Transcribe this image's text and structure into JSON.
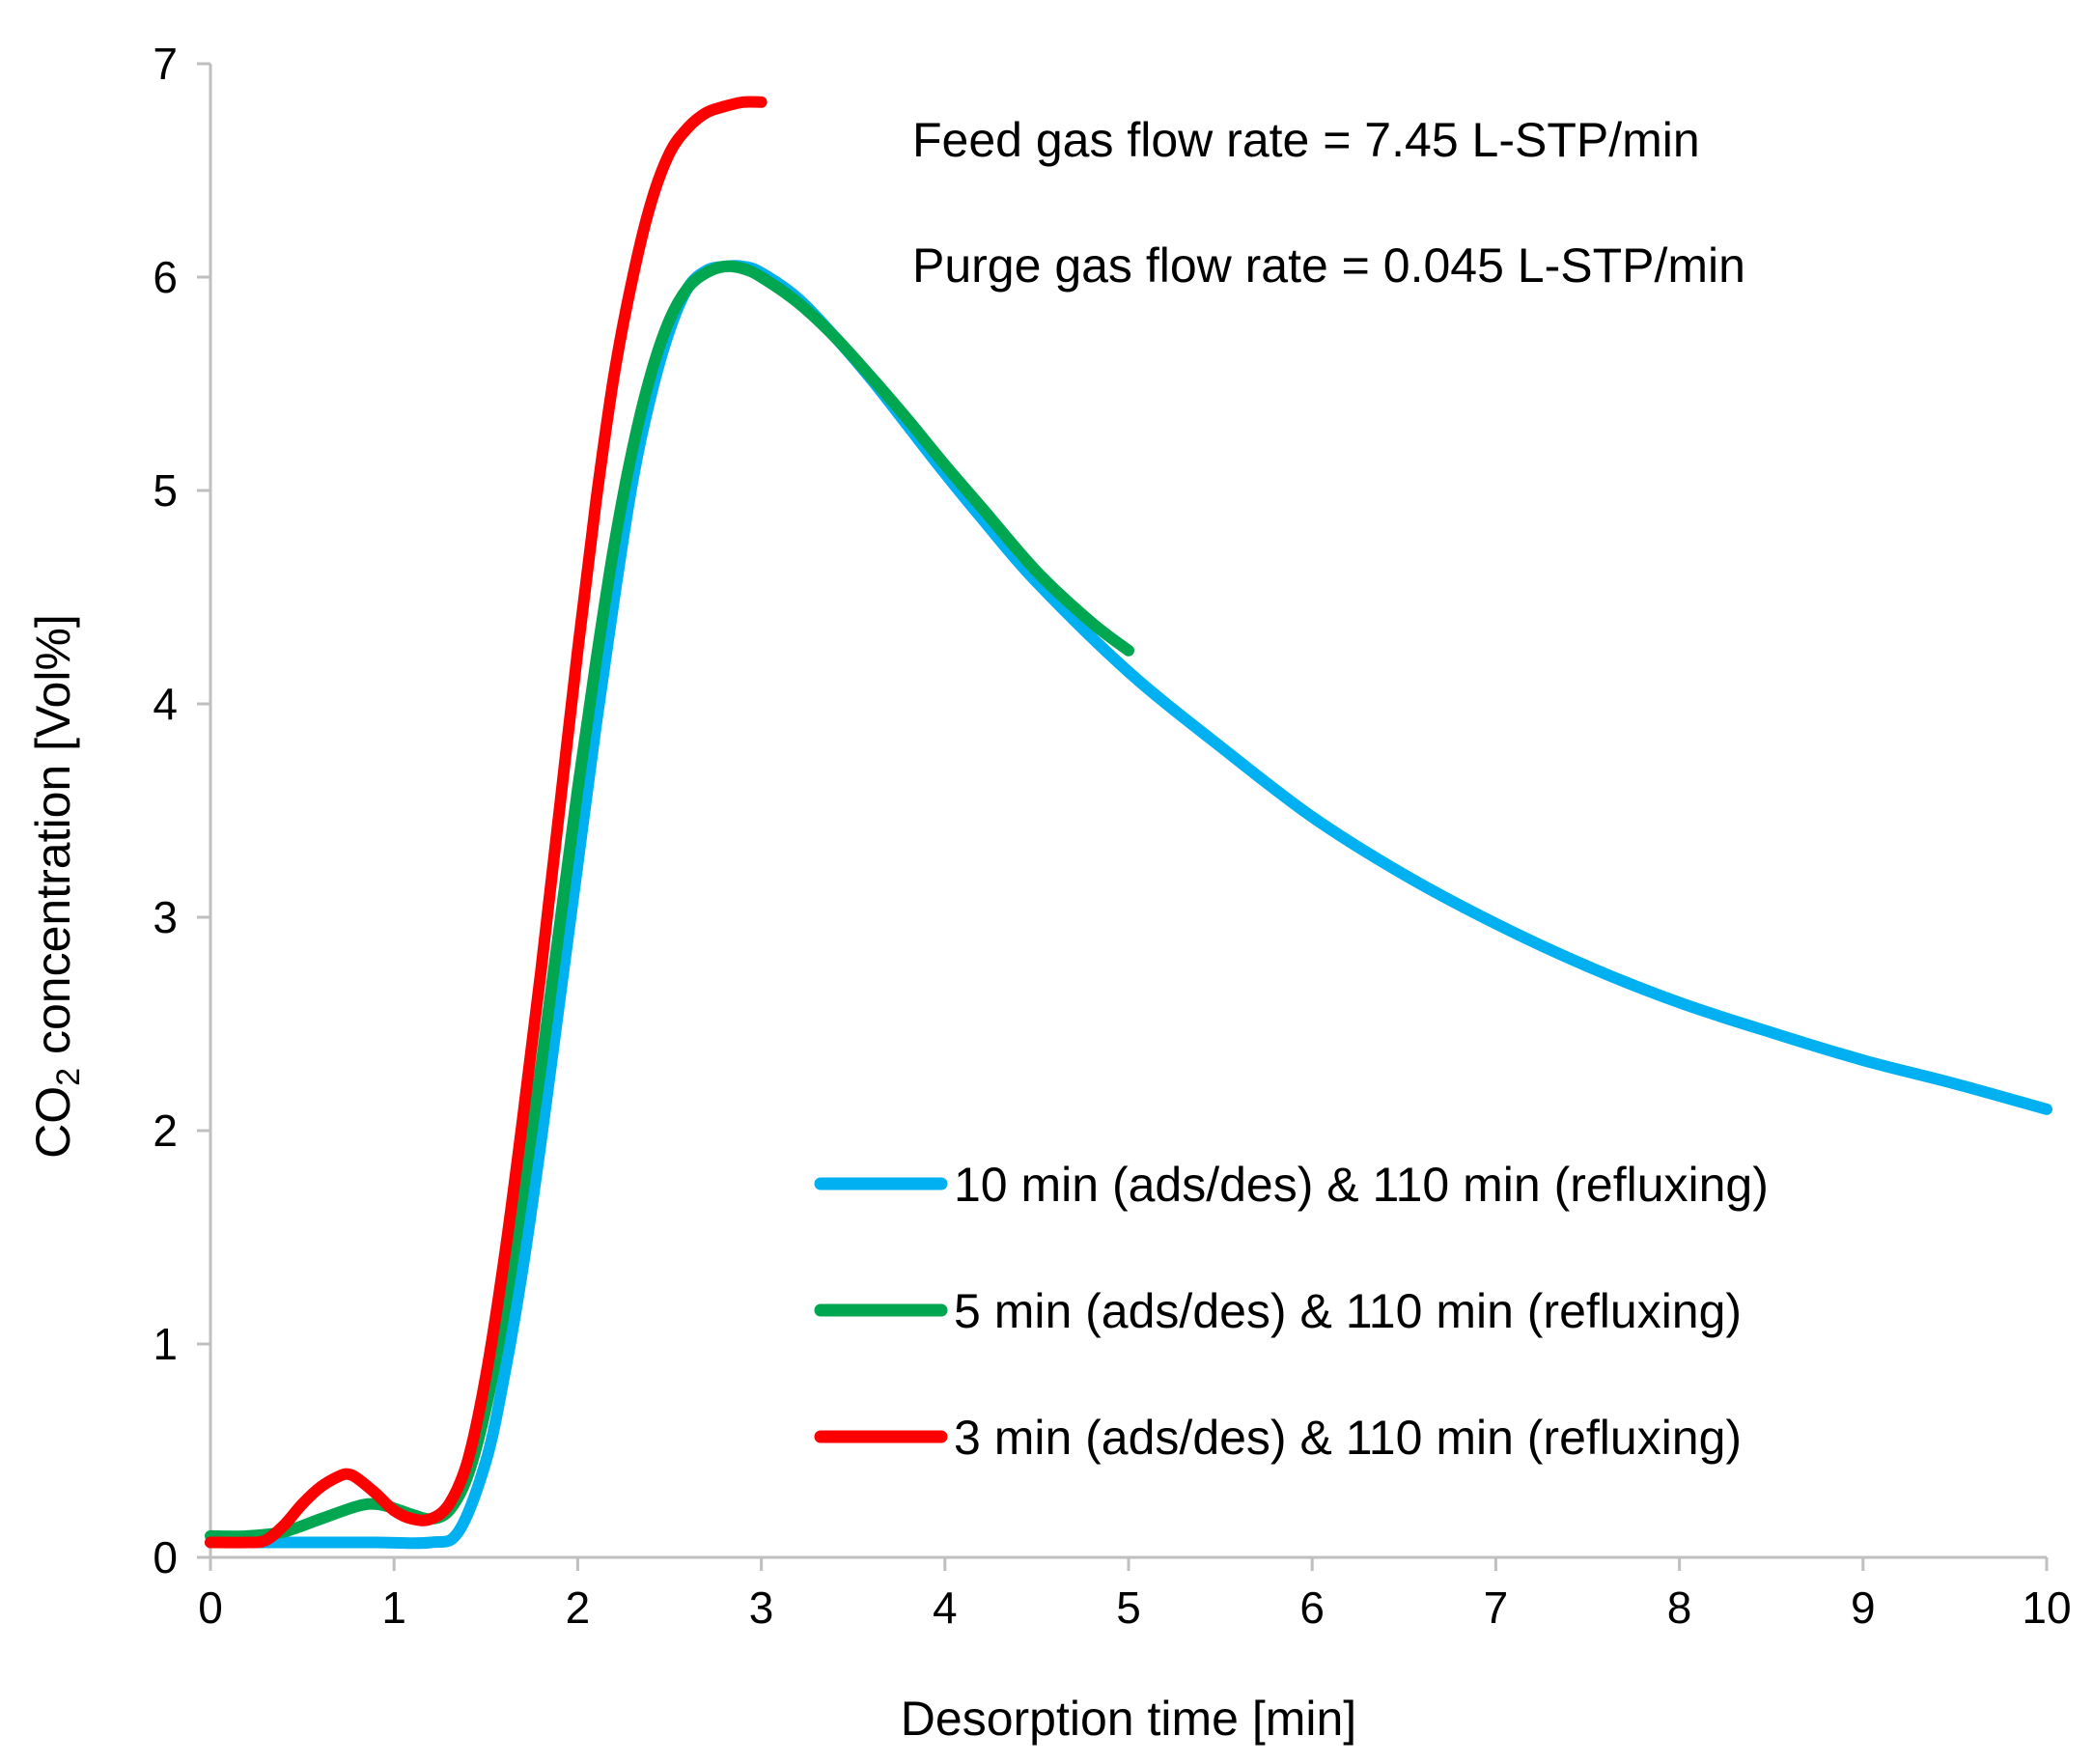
{
  "chart_data": {
    "type": "line",
    "xlabel": "Desorption time [min]",
    "ylabel_prefix": "CO",
    "ylabel_sub": "2",
    "ylabel_suffix": " concentration [Vol%]",
    "xlim": [
      0,
      10
    ],
    "ylim": [
      0,
      7
    ],
    "xticks": [
      "0",
      "1",
      "2",
      "3",
      "4",
      "5",
      "6",
      "7",
      "8",
      "9",
      "10"
    ],
    "yticks": [
      "0",
      "1",
      "2",
      "3",
      "4",
      "5",
      "6",
      "7"
    ],
    "grid": false,
    "legend_position": "bottom-right",
    "annotations": [
      "Feed gas flow rate = 7.45 L-STP/min",
      "Purge gas flow rate = 0.045 L-STP/min"
    ],
    "series": [
      {
        "name": "10 min (ads/des) & 110 min (refluxing)",
        "color": "#00b0f0",
        "x": [
          0,
          0.3,
          0.6,
          0.9,
          1.2,
          1.35,
          1.5,
          1.6,
          1.7,
          1.8,
          1.9,
          2.0,
          2.1,
          2.2,
          2.3,
          2.4,
          2.5,
          2.6,
          2.7,
          2.8,
          2.9,
          3.0,
          3.2,
          3.4,
          3.6,
          3.8,
          4.0,
          4.2,
          4.5,
          5.0,
          5.5,
          6.0,
          6.5,
          7.0,
          7.5,
          8.0,
          8.5,
          9.0,
          9.5,
          10.0
        ],
        "y": [
          0.07,
          0.07,
          0.07,
          0.07,
          0.07,
          0.12,
          0.45,
          0.85,
          1.35,
          1.95,
          2.6,
          3.25,
          3.9,
          4.5,
          5.05,
          5.45,
          5.75,
          5.95,
          6.03,
          6.05,
          6.05,
          6.02,
          5.9,
          5.72,
          5.52,
          5.3,
          5.08,
          4.87,
          4.57,
          4.15,
          3.8,
          3.47,
          3.2,
          2.97,
          2.77,
          2.6,
          2.46,
          2.33,
          2.22,
          2.1
        ]
      },
      {
        "name": "5 min (ads/des) & 110 min (refluxing)",
        "color": "#00a650",
        "x": [
          0,
          0.2,
          0.4,
          0.6,
          0.8,
          0.9,
          1.0,
          1.1,
          1.2,
          1.3,
          1.4,
          1.5,
          1.6,
          1.7,
          1.8,
          1.9,
          2.0,
          2.1,
          2.2,
          2.3,
          2.4,
          2.5,
          2.6,
          2.7,
          2.8,
          2.9,
          3.0,
          3.2,
          3.4,
          3.6,
          3.8,
          4.0,
          4.2,
          4.5,
          4.8,
          5.0
        ],
        "y": [
          0.1,
          0.1,
          0.12,
          0.18,
          0.24,
          0.25,
          0.23,
          0.2,
          0.18,
          0.22,
          0.38,
          0.7,
          1.15,
          1.7,
          2.3,
          2.95,
          3.6,
          4.2,
          4.75,
          5.2,
          5.55,
          5.8,
          5.95,
          6.02,
          6.05,
          6.04,
          6.0,
          5.88,
          5.72,
          5.53,
          5.33,
          5.12,
          4.92,
          4.62,
          4.38,
          4.25
        ]
      },
      {
        "name": "3 min (ads/des) & 110 min (refluxing)",
        "color": "#ff0000",
        "x": [
          0,
          0.2,
          0.3,
          0.4,
          0.5,
          0.6,
          0.7,
          0.75,
          0.8,
          0.9,
          1.0,
          1.1,
          1.2,
          1.3,
          1.4,
          1.5,
          1.6,
          1.7,
          1.8,
          1.9,
          2.0,
          2.1,
          2.2,
          2.3,
          2.4,
          2.5,
          2.6,
          2.7,
          2.8,
          2.9,
          3.0
        ],
        "y": [
          0.07,
          0.07,
          0.08,
          0.15,
          0.25,
          0.33,
          0.38,
          0.39,
          0.37,
          0.3,
          0.22,
          0.18,
          0.18,
          0.25,
          0.45,
          0.85,
          1.4,
          2.05,
          2.75,
          3.5,
          4.25,
          4.95,
          5.55,
          6.0,
          6.35,
          6.58,
          6.7,
          6.77,
          6.8,
          6.82,
          6.82
        ]
      }
    ]
  }
}
